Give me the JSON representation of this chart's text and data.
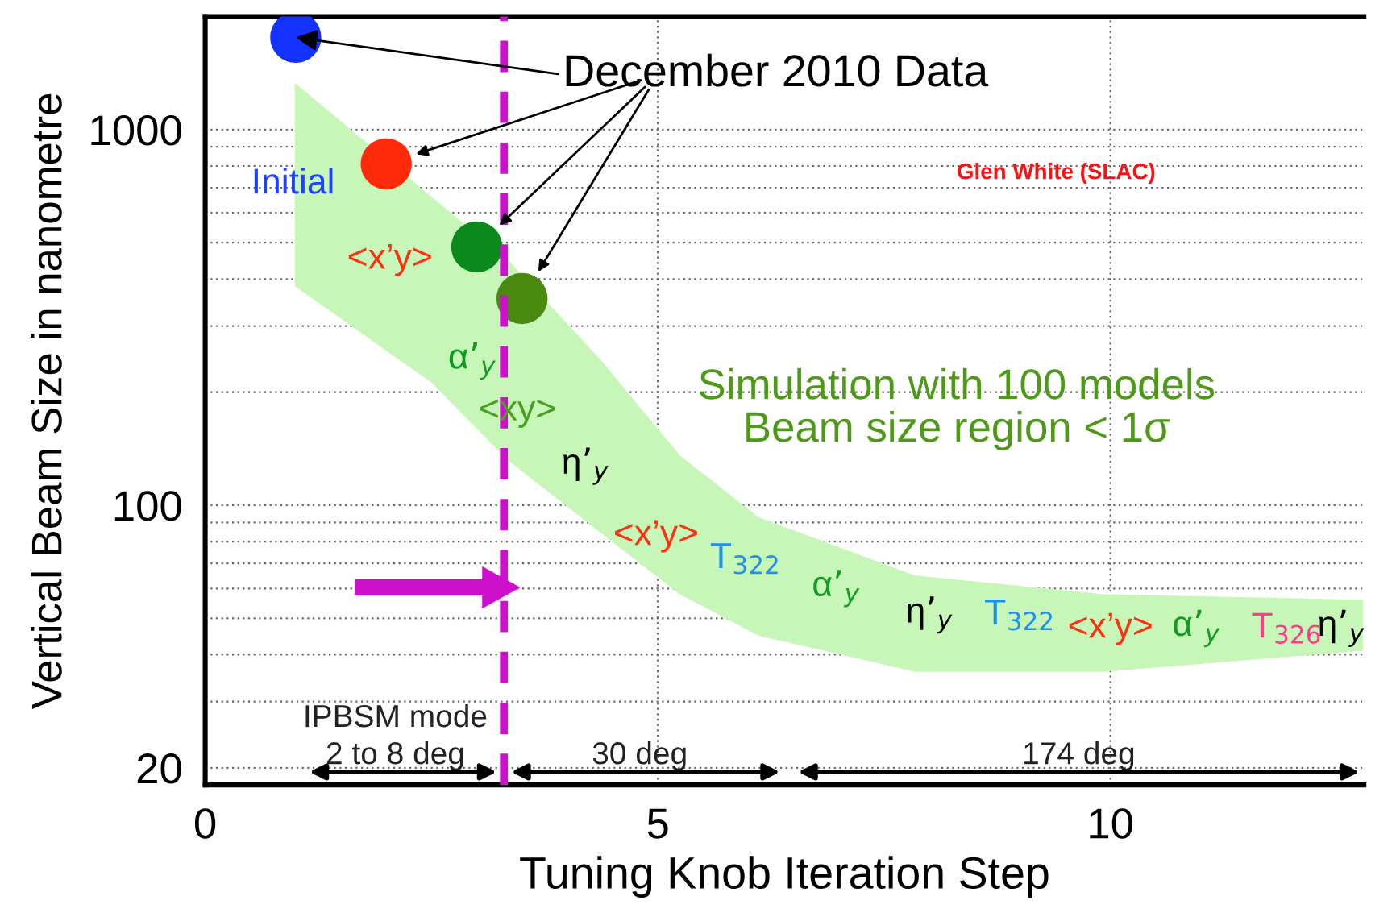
{
  "chart_data": {
    "type": "scatter",
    "xlabel": "Tuning Knob Iteration Step",
    "ylabel": "Vertical Beam Size in nanometre",
    "xlim": [
      0,
      12.8
    ],
    "xticks": [
      0,
      5,
      10
    ],
    "ylim": [
      18,
      2000
    ],
    "yticks": [
      1000,
      100,
      20
    ],
    "log": "y",
    "grid": true,
    "series": [
      {
        "type": "area",
        "color": "#c6f7b8",
        "x": [
          0.99,
          2.5,
          3.34,
          4.38,
          5.24,
          6.11,
          7.84,
          9.91,
          12.79
        ],
        "values": [
          null,
          null,
          null,
          null,
          null,
          null,
          null,
          null,
          null
        ],
        "upper": [
          1330,
          662,
          451,
          242,
          136,
          93,
          65,
          58,
          56
        ],
        "lower": [
          383,
          212,
          132,
          84,
          58,
          45,
          36,
          36,
          41
        ]
      },
      {
        "x": [
          1,
          2,
          3,
          3.5
        ],
        "values": [
          1760,
          810,
          487,
          355
        ],
        "colors": [
          "#1432ff",
          "#ff2a0a",
          "#0a8a1a",
          "#4a8a10"
        ],
        "marker": "circle"
      }
    ],
    "ref_lines": [
      {
        "axis": "x",
        "value": 3.3,
        "color": "#cc10cc",
        "line_style": "dashed"
      }
    ],
    "annotations": [
      {
        "text": "December 2010 Data",
        "x": 1,
        "y": 1760
      },
      "Glen White (SLAC)",
      "Simulation with 100 models\nBeam size region < 1σ",
      "IPBSM mode",
      "2 to 8 deg",
      "30 deg",
      "174 deg",
      "Initial",
      "<x’y>",
      "α’$_{y}$",
      "<xy>",
      "η’$_{y}$",
      "<x’y>",
      "T$_{322}$",
      "α’$_{y}$",
      "η’$_{y}$",
      "T$_{322}$",
      "<x’y>",
      "α’$_{y}$",
      "T$_{326}$",
      "η’$_{y}$"
    ]
  }
}
